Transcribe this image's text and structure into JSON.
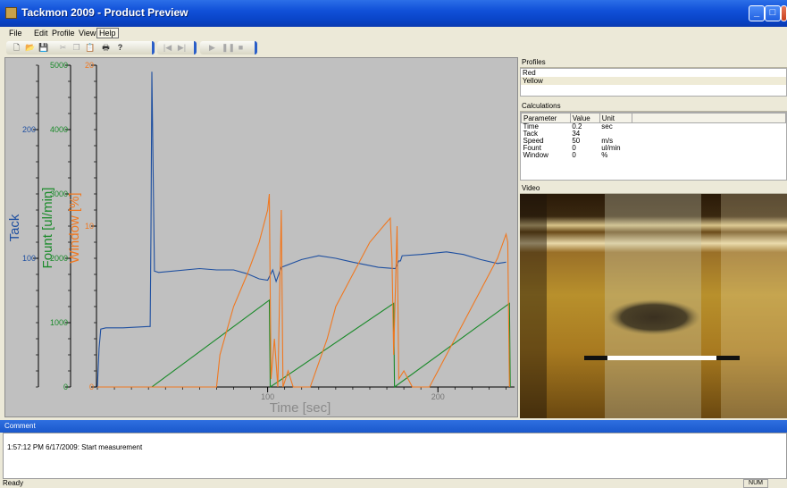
{
  "window": {
    "title": "Tackmon 2009 - Product Preview",
    "minimize": "_",
    "maximize": "□",
    "close": "✕"
  },
  "menu": [
    "File",
    "Edit",
    "Profile",
    "View",
    "Help"
  ],
  "toolbar": {
    "icons": [
      "new-icon",
      "open-icon",
      "save-icon",
      "cut-icon",
      "copy-icon",
      "paste-icon",
      "print-icon",
      "help-icon",
      "play-icon",
      "pause-icon",
      "stop-icon"
    ]
  },
  "profiles": {
    "title": "Profiles",
    "items": [
      "Red",
      "Yellow"
    ],
    "selected": "Yellow"
  },
  "calculations": {
    "title": "Calculations",
    "headers": [
      "Parameter",
      "Value",
      "Unit"
    ],
    "rows": [
      [
        "Time",
        "0.2",
        "sec"
      ],
      [
        "Tack",
        "34",
        ""
      ],
      [
        "Speed",
        "50",
        "m/s"
      ],
      [
        "Fount",
        "0",
        "ul/min"
      ],
      [
        "Window",
        "0",
        "%"
      ]
    ]
  },
  "video": {
    "title": "Video"
  },
  "comment": {
    "title": "Comment",
    "text": "1:57:12 PM 6/17/2009: Start measurement"
  },
  "status": {
    "ready": "Ready",
    "num": "NUM"
  },
  "chart_data": {
    "type": "line",
    "xlabel": "Time [sec]",
    "xlim": [
      0,
      245
    ],
    "xticks": [
      100,
      200
    ],
    "axes": [
      {
        "name": "Tack",
        "label": "Tack",
        "color": "#1e4fa0",
        "ylim": [
          0,
          250
        ],
        "ticks": [
          100,
          200
        ]
      },
      {
        "name": "Fount",
        "label": "Fount [ul/min]",
        "color": "#1a8a2a",
        "ylim": [
          0,
          5000
        ],
        "ticks": [
          0,
          1000,
          2000,
          3000,
          4000,
          5000
        ]
      },
      {
        "name": "Window",
        "label": "Window [%]",
        "color": "#f07820",
        "ylim": [
          0,
          20
        ],
        "ticks": [
          0,
          10,
          20
        ]
      }
    ],
    "series": [
      {
        "name": "Tack",
        "axis": 0,
        "points": [
          [
            0,
            0
          ],
          [
            1,
            30
          ],
          [
            2,
            45
          ],
          [
            5,
            46
          ],
          [
            15,
            46
          ],
          [
            30,
            47
          ],
          [
            31,
            47
          ],
          [
            31.5,
            120
          ],
          [
            32,
            245
          ],
          [
            33.5,
            90
          ],
          [
            36,
            89
          ],
          [
            60,
            92
          ],
          [
            70,
            91
          ],
          [
            80,
            91
          ],
          [
            88,
            88
          ],
          [
            95,
            84
          ],
          [
            100,
            83
          ],
          [
            103,
            91
          ],
          [
            105,
            82
          ],
          [
            108,
            93
          ],
          [
            120,
            99
          ],
          [
            130,
            102
          ],
          [
            140,
            100
          ],
          [
            150,
            97
          ],
          [
            165,
            93
          ],
          [
            175,
            92
          ],
          [
            177,
            98
          ],
          [
            178,
            98
          ],
          [
            179,
            102
          ],
          [
            190,
            103
          ],
          [
            205,
            105
          ],
          [
            215,
            103
          ],
          [
            225,
            99
          ],
          [
            235,
            96
          ],
          [
            240,
            97
          ]
        ]
      },
      {
        "name": "Fount",
        "axis": 1,
        "points": [
          [
            0,
            0
          ],
          [
            32,
            0
          ],
          [
            101,
            1350
          ],
          [
            101.5,
            0
          ],
          [
            174,
            1300
          ],
          [
            174.5,
            0
          ],
          [
            242,
            1300
          ],
          [
            242.5,
            0
          ]
        ]
      },
      {
        "name": "Window",
        "axis": 2,
        "points": [
          [
            0,
            0
          ],
          [
            70,
            0
          ],
          [
            72,
            2
          ],
          [
            80,
            5
          ],
          [
            88,
            7
          ],
          [
            95,
            9
          ],
          [
            100,
            11
          ],
          [
            101,
            12
          ],
          [
            102,
            0.5
          ],
          [
            104,
            3
          ],
          [
            106,
            0
          ],
          [
            108,
            11
          ],
          [
            109,
            0
          ],
          [
            112,
            1
          ],
          [
            115,
            0
          ],
          [
            125,
            0
          ],
          [
            135,
            3
          ],
          [
            140,
            5
          ],
          [
            150,
            7
          ],
          [
            160,
            9
          ],
          [
            168,
            10
          ],
          [
            172,
            10.5
          ],
          [
            173,
            8
          ],
          [
            174,
            2
          ],
          [
            176,
            10
          ],
          [
            177,
            0.5
          ],
          [
            180,
            1
          ],
          [
            185,
            0
          ],
          [
            195,
            0
          ],
          [
            205,
            2
          ],
          [
            215,
            4
          ],
          [
            225,
            6
          ],
          [
            235,
            8
          ],
          [
            240,
            9.5
          ],
          [
            241,
            9
          ],
          [
            242,
            0
          ]
        ]
      }
    ]
  }
}
